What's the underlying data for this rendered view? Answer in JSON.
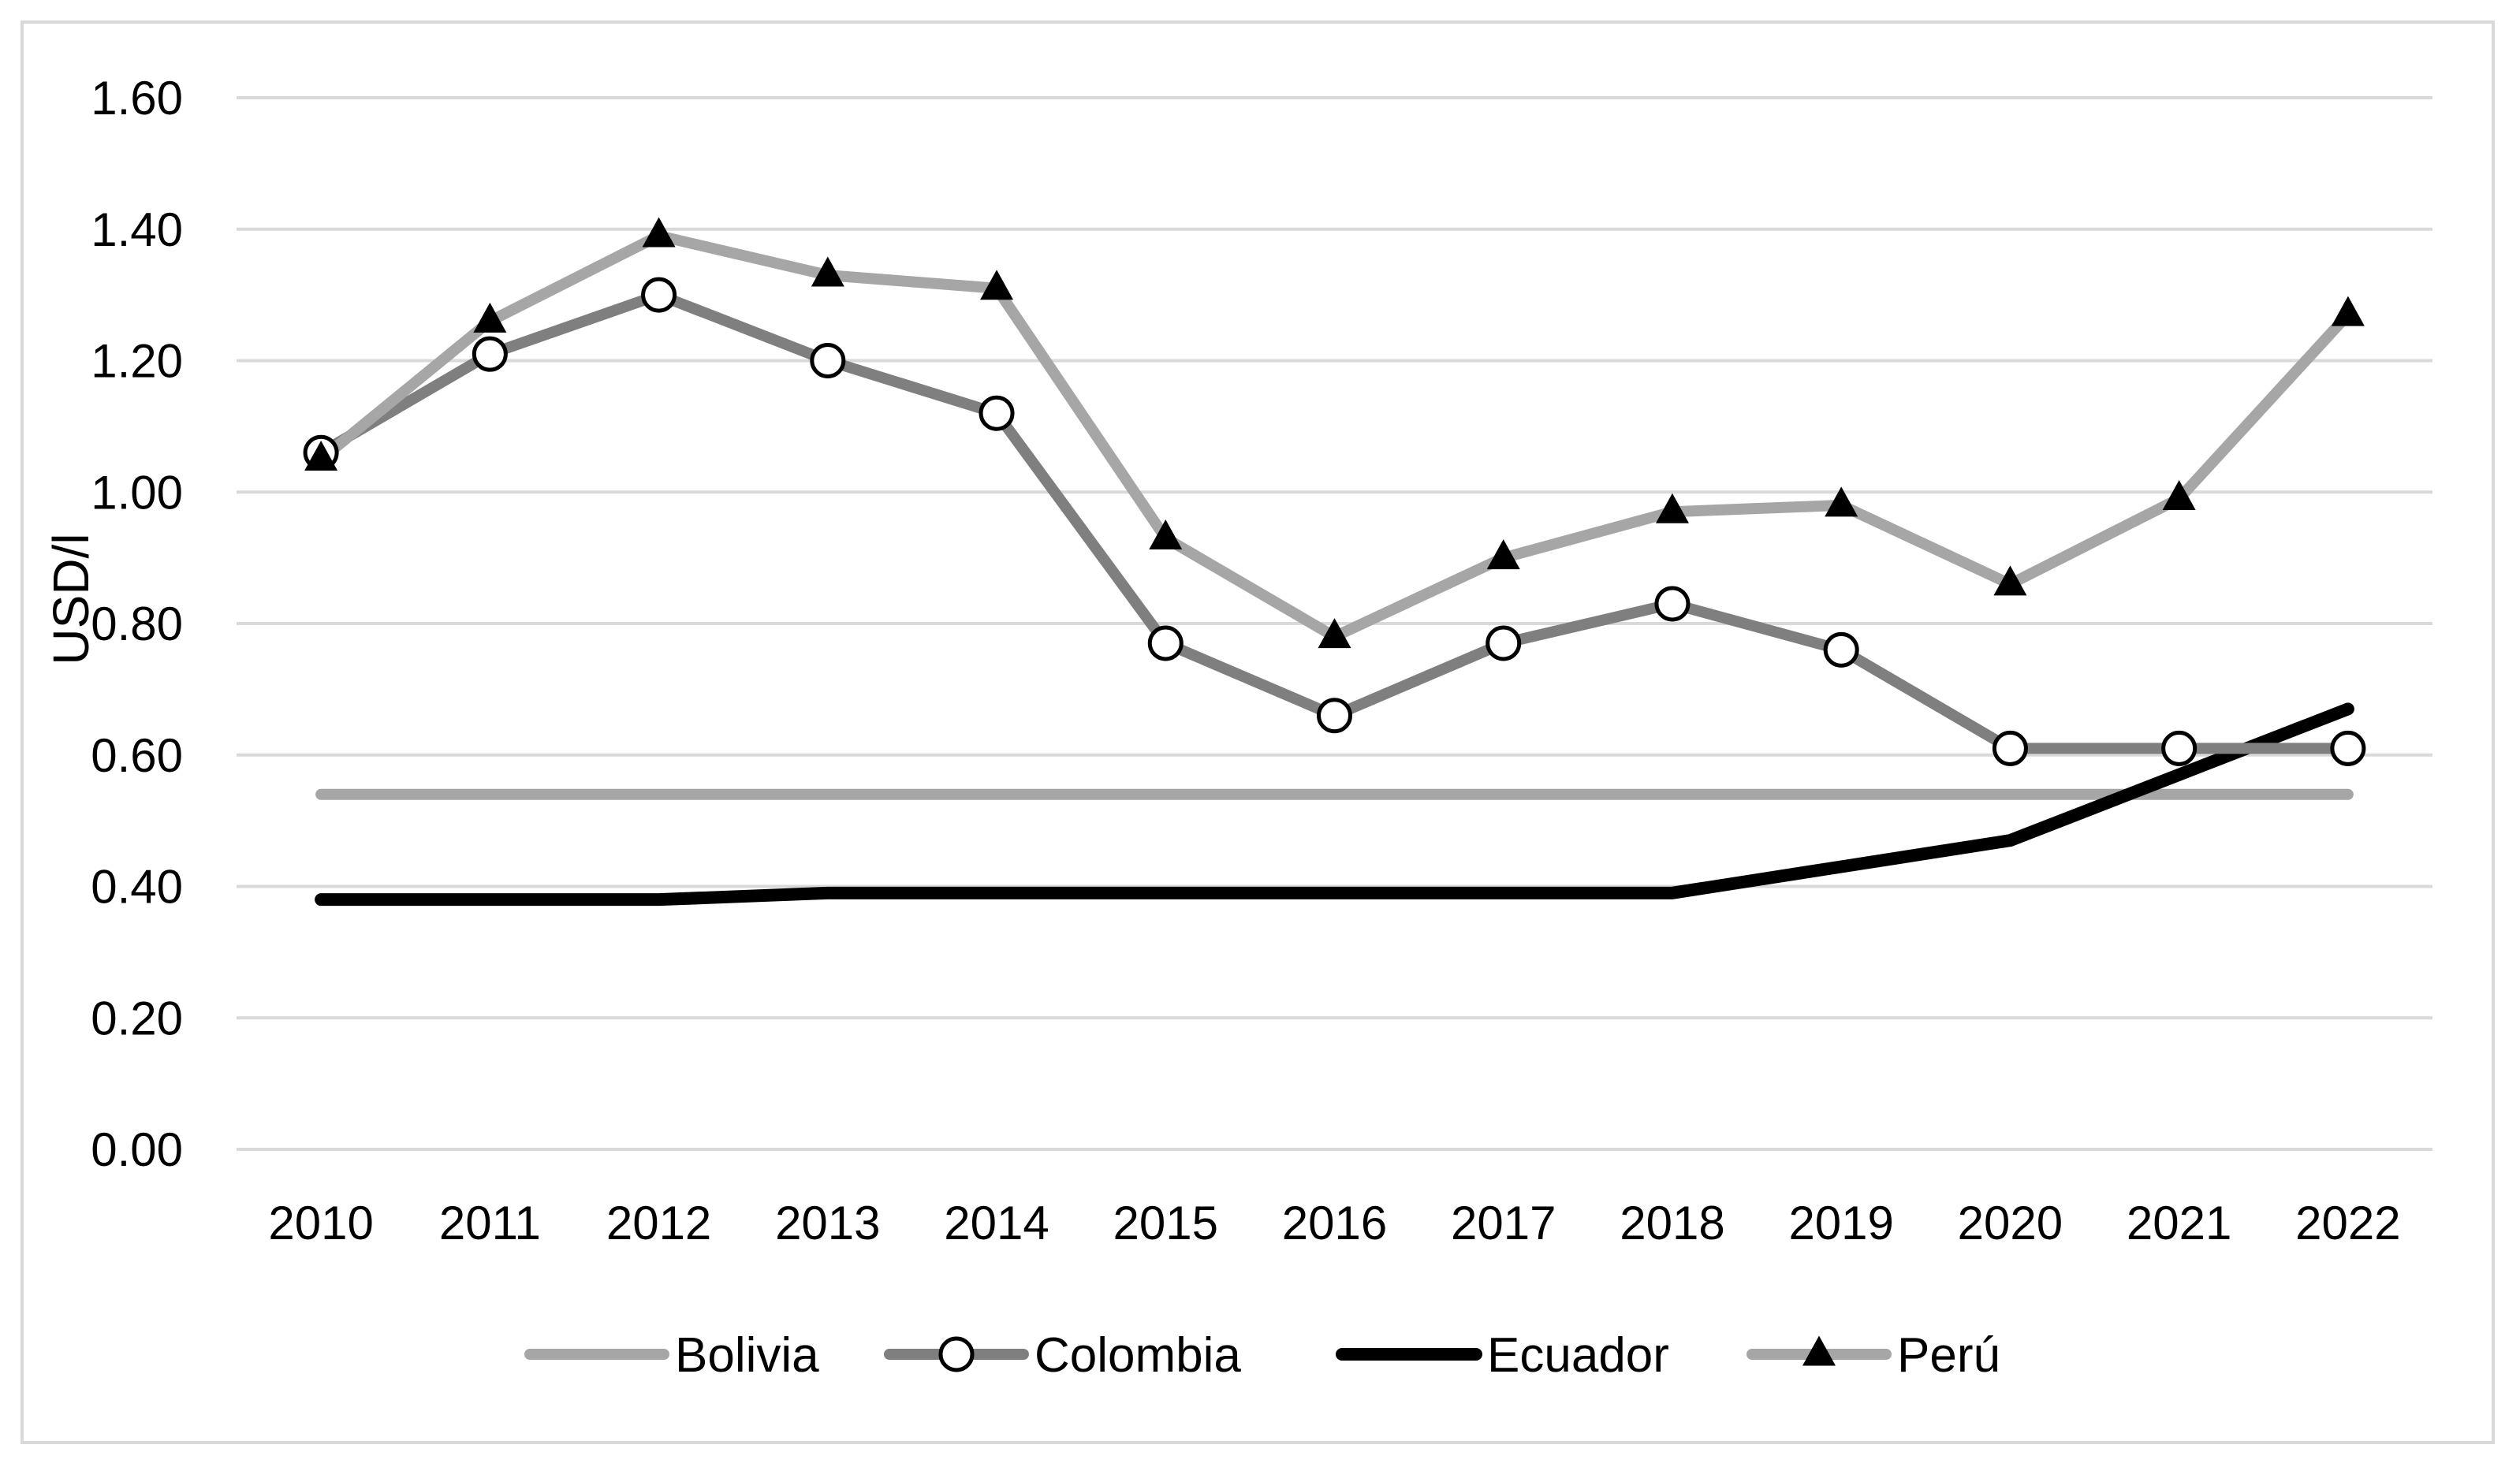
{
  "chart_data": {
    "type": "line",
    "title": "",
    "xlabel": "",
    "ylabel": "USD/l",
    "ylim": [
      0,
      1.6
    ],
    "ytick_step": 0.2,
    "grid": true,
    "legend_position": "bottom",
    "categories": [
      "2010",
      "2011",
      "2012",
      "2013",
      "2014",
      "2015",
      "2016",
      "2017",
      "2018",
      "2019",
      "2020",
      "2021",
      "2022"
    ],
    "yticks": [
      "0.00",
      "0.20",
      "0.40",
      "0.60",
      "0.80",
      "1.00",
      "1.20",
      "1.40",
      "1.60"
    ],
    "series": [
      {
        "name": "Bolivia",
        "color": "#a6a6a6",
        "marker": "none",
        "values": [
          0.54,
          0.54,
          0.54,
          0.54,
          0.54,
          0.54,
          0.54,
          0.54,
          0.54,
          0.54,
          0.54,
          0.54,
          0.54
        ]
      },
      {
        "name": "Colombia",
        "color": "#7f7f7f",
        "marker": "circle",
        "values": [
          1.06,
          1.21,
          1.3,
          1.2,
          1.12,
          0.77,
          0.66,
          0.77,
          0.83,
          0.76,
          0.61,
          0.61,
          0.61
        ]
      },
      {
        "name": "Ecuador",
        "color": "#000000",
        "marker": "none",
        "values": [
          0.38,
          0.38,
          0.38,
          0.39,
          0.39,
          0.39,
          0.39,
          0.39,
          0.39,
          0.43,
          0.47,
          0.57,
          0.67
        ]
      },
      {
        "name": "Perú",
        "color": "#a6a6a6",
        "marker": "triangle",
        "values": [
          1.05,
          1.26,
          1.39,
          1.33,
          1.31,
          0.93,
          0.78,
          0.9,
          0.97,
          0.98,
          0.86,
          0.99,
          1.27
        ]
      }
    ]
  }
}
